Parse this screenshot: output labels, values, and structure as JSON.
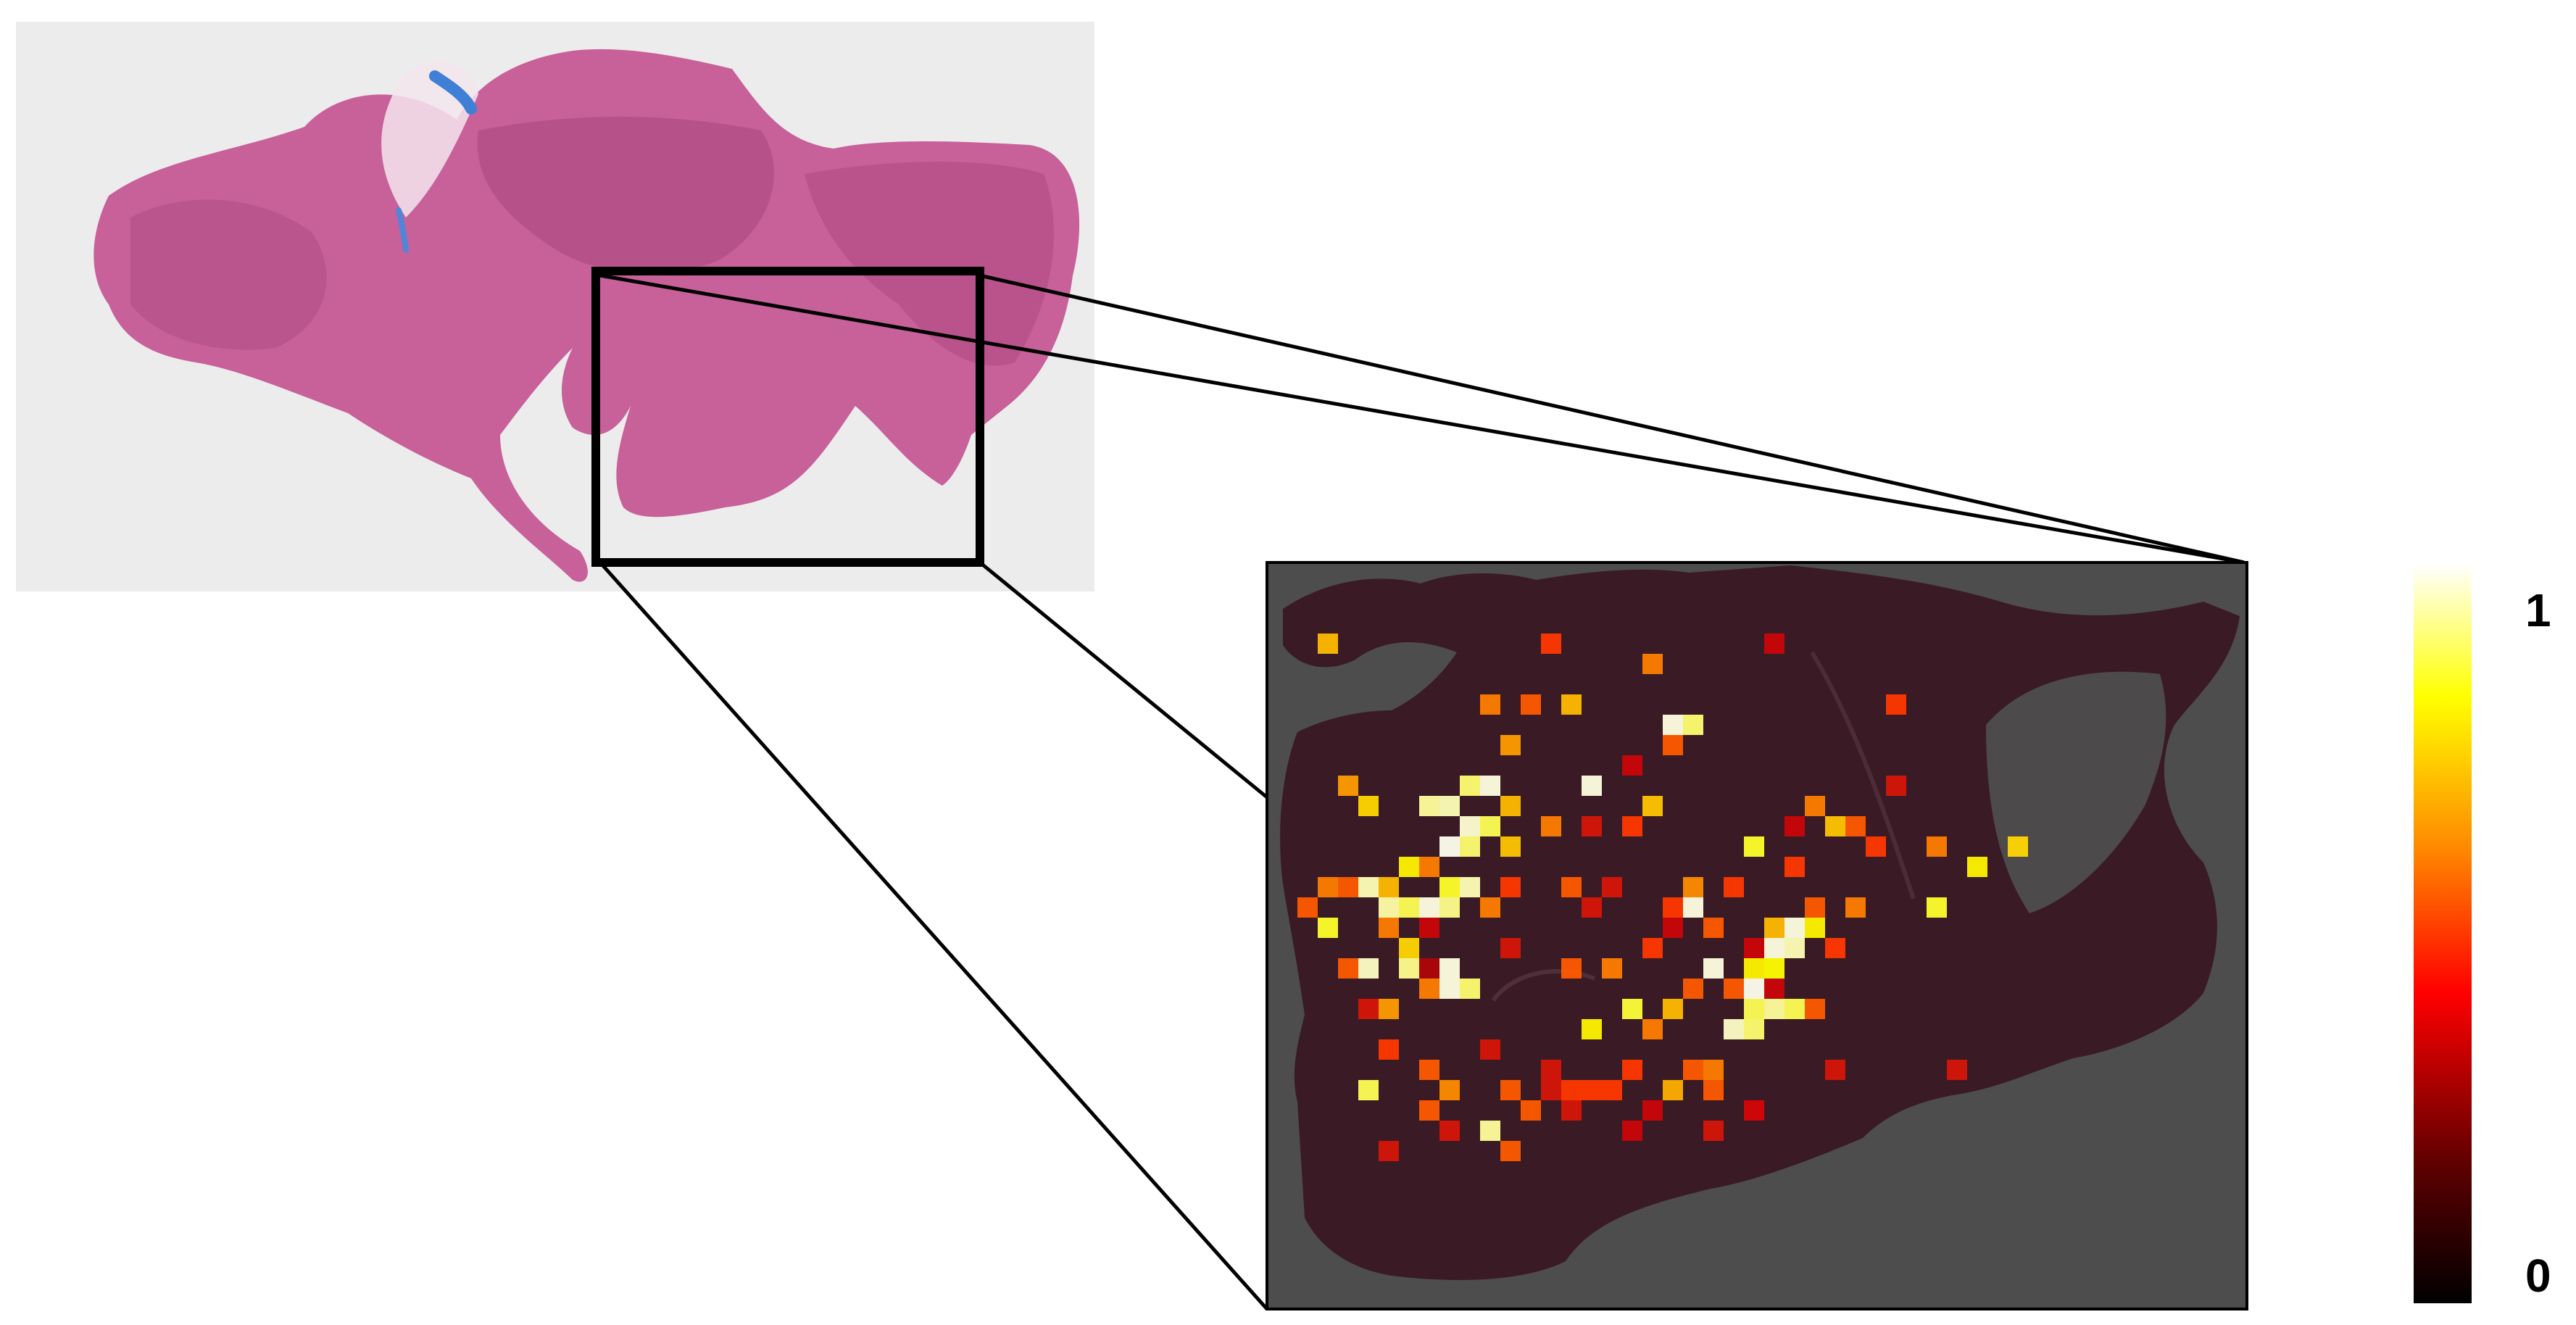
{
  "colorbar": {
    "max_label": "1",
    "min_label": "0",
    "gradient_stops": [
      "#000000",
      "#5a0000",
      "#ff0000",
      "#ff8c00",
      "#ffff00",
      "#ffffff"
    ]
  },
  "colors": {
    "slide_background": "#ececec",
    "tissue_pink": "#c8609a",
    "tissue_dark": "#a8457c",
    "heatmap_background": "#4d4d4d",
    "heatmap_tissue": "#3a1a24",
    "frame": "#000000"
  },
  "heatmap": {
    "value_range": [
      0,
      1
    ],
    "cells": [
      [
        1,
        3,
        0.7
      ],
      [
        12,
        3,
        0.5
      ],
      [
        17,
        4,
        0.6
      ],
      [
        23,
        3,
        0.4
      ],
      [
        9,
        6,
        0.6
      ],
      [
        11,
        6,
        0.55
      ],
      [
        13,
        6,
        0.7
      ],
      [
        18,
        7,
        0.98
      ],
      [
        19,
        7,
        0.9
      ],
      [
        10,
        8,
        0.65
      ],
      [
        18,
        8,
        0.55
      ],
      [
        29,
        6,
        0.5
      ],
      [
        2,
        10,
        0.65
      ],
      [
        3,
        11,
        0.75
      ],
      [
        8,
        10,
        0.9
      ],
      [
        9,
        10,
        0.98
      ],
      [
        10,
        11,
        0.7
      ],
      [
        14,
        10,
        0.98
      ],
      [
        16,
        9,
        0.4
      ],
      [
        17,
        11,
        0.72
      ],
      [
        25,
        11,
        0.6
      ],
      [
        29,
        10,
        0.45
      ],
      [
        6,
        11,
        0.93
      ],
      [
        7,
        11,
        0.95
      ],
      [
        8,
        12,
        0.97
      ],
      [
        9,
        12,
        0.88
      ],
      [
        7,
        13,
        0.99
      ],
      [
        8,
        13,
        0.9
      ],
      [
        10,
        13,
        0.72
      ],
      [
        12,
        12,
        0.6
      ],
      [
        16,
        12,
        0.5
      ],
      [
        22,
        13,
        0.85
      ],
      [
        26,
        12,
        0.72
      ],
      [
        27,
        12,
        0.55
      ],
      [
        28,
        13,
        0.5
      ],
      [
        31,
        13,
        0.6
      ],
      [
        24,
        12,
        0.4
      ],
      [
        14,
        12,
        0.45
      ],
      [
        1,
        15,
        0.6
      ],
      [
        2,
        15,
        0.55
      ],
      [
        3,
        15,
        0.95
      ],
      [
        4,
        15,
        0.7
      ],
      [
        5,
        14,
        0.8
      ],
      [
        6,
        14,
        0.6
      ],
      [
        7,
        15,
        0.85
      ],
      [
        8,
        15,
        0.95
      ],
      [
        10,
        15,
        0.5
      ],
      [
        13,
        15,
        0.55
      ],
      [
        15,
        15,
        0.45
      ],
      [
        19,
        15,
        0.62
      ],
      [
        21,
        15,
        0.5
      ],
      [
        24,
        14,
        0.5
      ],
      [
        33,
        14,
        0.8
      ],
      [
        35,
        13,
        0.75
      ],
      [
        0,
        16,
        0.55
      ],
      [
        4,
        16,
        0.94
      ],
      [
        5,
        16,
        0.88
      ],
      [
        6,
        16,
        0.98
      ],
      [
        7,
        16,
        0.92
      ],
      [
        9,
        16,
        0.6
      ],
      [
        14,
        16,
        0.45
      ],
      [
        18,
        16,
        0.5
      ],
      [
        19,
        16,
        0.98
      ],
      [
        25,
        16,
        0.55
      ],
      [
        27,
        16,
        0.6
      ],
      [
        1,
        17,
        0.85
      ],
      [
        4,
        17,
        0.6
      ],
      [
        6,
        17,
        0.4
      ],
      [
        18,
        17,
        0.4
      ],
      [
        20,
        17,
        0.55
      ],
      [
        23,
        17,
        0.7
      ],
      [
        24,
        17,
        0.98
      ],
      [
        25,
        17,
        0.8
      ],
      [
        31,
        16,
        0.85
      ],
      [
        5,
        18,
        0.75
      ],
      [
        10,
        18,
        0.45
      ],
      [
        17,
        18,
        0.5
      ],
      [
        22,
        18,
        0.4
      ],
      [
        23,
        18,
        0.98
      ],
      [
        24,
        18,
        0.95
      ],
      [
        26,
        18,
        0.5
      ],
      [
        2,
        19,
        0.55
      ],
      [
        3,
        19,
        0.96
      ],
      [
        5,
        19,
        0.92
      ],
      [
        6,
        19,
        0.35
      ],
      [
        7,
        19,
        0.98
      ],
      [
        13,
        19,
        0.55
      ],
      [
        15,
        19,
        0.6
      ],
      [
        20,
        19,
        0.98
      ],
      [
        22,
        19,
        0.8
      ],
      [
        23,
        19,
        0.82
      ],
      [
        6,
        20,
        0.6
      ],
      [
        7,
        20,
        0.98
      ],
      [
        8,
        20,
        0.9
      ],
      [
        19,
        20,
        0.55
      ],
      [
        21,
        20,
        0.55
      ],
      [
        22,
        20,
        0.99
      ],
      [
        23,
        20,
        0.4
      ],
      [
        4,
        21,
        0.65
      ],
      [
        16,
        21,
        0.86
      ],
      [
        18,
        21,
        0.7
      ],
      [
        22,
        21,
        0.88
      ],
      [
        23,
        21,
        0.93
      ],
      [
        24,
        21,
        0.88
      ],
      [
        25,
        21,
        0.55
      ],
      [
        14,
        22,
        0.8
      ],
      [
        17,
        22,
        0.6
      ],
      [
        21,
        22,
        0.96
      ],
      [
        22,
        22,
        0.9
      ],
      [
        3,
        21,
        0.45
      ],
      [
        4,
        23,
        0.5
      ],
      [
        6,
        24,
        0.55
      ],
      [
        9,
        23,
        0.45
      ],
      [
        12,
        24,
        0.45
      ],
      [
        16,
        24,
        0.5
      ],
      [
        19,
        24,
        0.55
      ],
      [
        20,
        24,
        0.6
      ],
      [
        26,
        24,
        0.45
      ],
      [
        32,
        24,
        0.45
      ],
      [
        3,
        25,
        0.88
      ],
      [
        7,
        25,
        0.62
      ],
      [
        10,
        25,
        0.55
      ],
      [
        13,
        25,
        0.5
      ],
      [
        14,
        25,
        0.5
      ],
      [
        12,
        25,
        0.45
      ],
      [
        15,
        25,
        0.5
      ],
      [
        18,
        25,
        0.68
      ],
      [
        20,
        25,
        0.55
      ],
      [
        22,
        26,
        0.42
      ],
      [
        11,
        26,
        0.55
      ],
      [
        6,
        26,
        0.55
      ],
      [
        13,
        26,
        0.45
      ],
      [
        17,
        26,
        0.4
      ],
      [
        9,
        27,
        0.93
      ],
      [
        10,
        28,
        0.55
      ],
      [
        7,
        27,
        0.45
      ],
      [
        4,
        28,
        0.45
      ],
      [
        16,
        27,
        0.4
      ],
      [
        20,
        27,
        0.45
      ]
    ]
  }
}
